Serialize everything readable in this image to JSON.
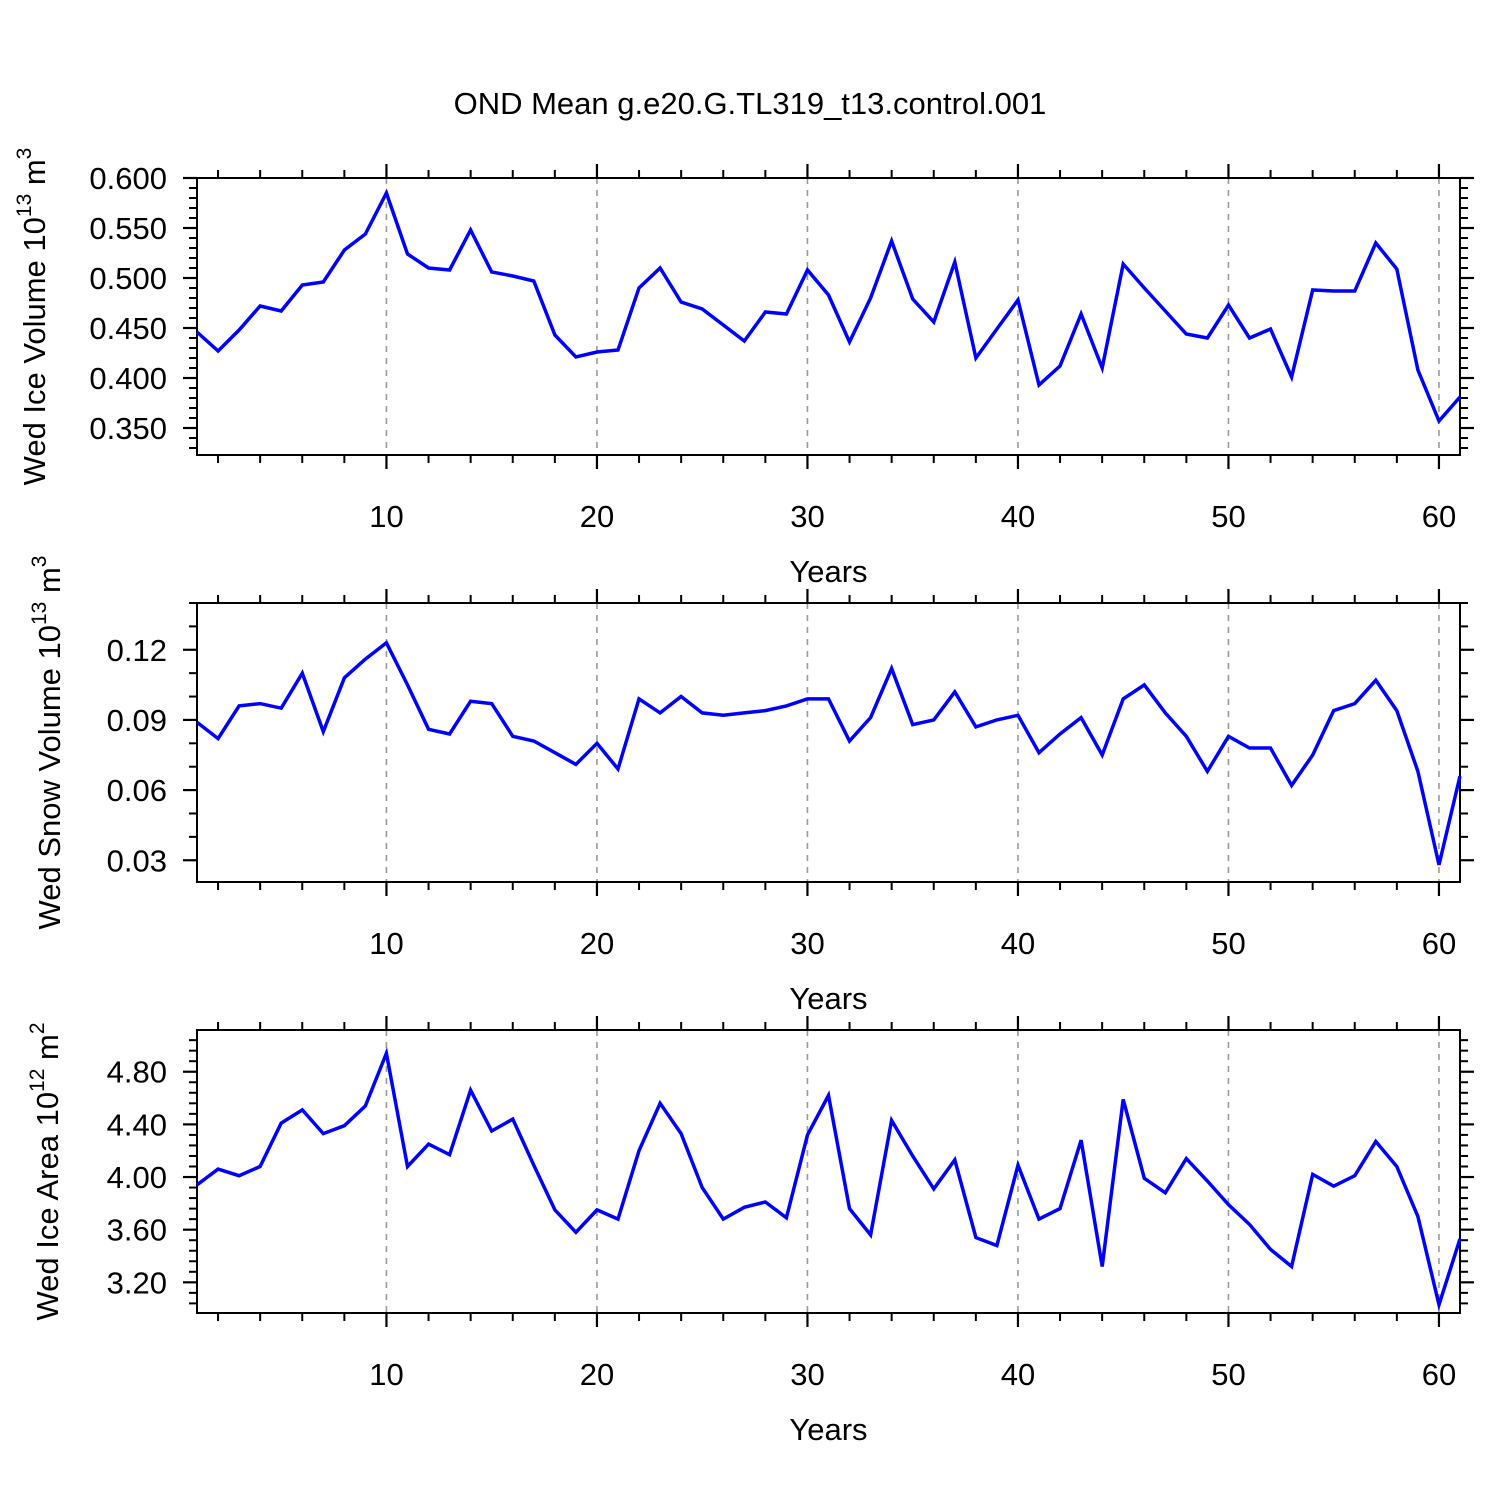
{
  "title": "OND Mean g.e20.G.TL319_t13.control.001",
  "chart_data": {
    "type": "line",
    "x_label": "Years",
    "x": [
      1,
      2,
      3,
      4,
      5,
      6,
      7,
      8,
      9,
      10,
      11,
      12,
      13,
      14,
      15,
      16,
      17,
      18,
      19,
      20,
      21,
      22,
      23,
      24,
      25,
      26,
      27,
      28,
      29,
      30,
      31,
      32,
      33,
      34,
      35,
      36,
      37,
      38,
      39,
      40,
      41,
      42,
      43,
      44,
      45,
      46,
      47,
      48,
      49,
      50,
      51,
      52,
      53,
      54,
      55,
      56,
      57,
      58,
      59,
      60,
      61
    ],
    "xlim": [
      1,
      61
    ],
    "x_ticks_major": [
      10,
      20,
      30,
      40,
      50,
      60
    ],
    "x_minor_step": 2,
    "grid": "vertical dashed gridlines at major x ticks",
    "grid_color": "#9a9a9a",
    "series_color": "#0000ff",
    "axis_color": "#000000",
    "panels": [
      {
        "name": "Wed Ice Volume",
        "ylabel_prefix": "Wed Ice Volume 10",
        "ylabel_exponent": "13",
        "ylabel_unit": "m",
        "ylabel_unit_exponent": "3",
        "xlabel": "Years",
        "ylim": [
          0.323,
          0.6
        ],
        "ytick_start": 0.35,
        "ytick_step": 0.05,
        "ytick_end": 0.6,
        "yminor_step": 0.01,
        "ydecimals": 3,
        "values": [
          0.446,
          0.427,
          0.448,
          0.472,
          0.467,
          0.493,
          0.496,
          0.528,
          0.544,
          0.585,
          0.524,
          0.51,
          0.508,
          0.548,
          0.506,
          0.502,
          0.497,
          0.443,
          0.421,
          0.426,
          0.428,
          0.49,
          0.51,
          0.476,
          0.469,
          0.453,
          0.437,
          0.466,
          0.464,
          0.508,
          0.483,
          0.436,
          0.48,
          0.537,
          0.479,
          0.456,
          0.516,
          0.42,
          0.449,
          0.478,
          0.393,
          0.412,
          0.464,
          0.41,
          0.514,
          0.49,
          0.467,
          0.444,
          0.44,
          0.473,
          0.44,
          0.449,
          0.401,
          0.488,
          0.487,
          0.487,
          0.535,
          0.509,
          0.408,
          0.357,
          0.381
        ]
      },
      {
        "name": "Wed Snow Volume",
        "ylabel_prefix": "Wed Snow Volume 10",
        "ylabel_exponent": "13",
        "ylabel_unit": "m",
        "ylabel_unit_exponent": "3",
        "xlabel": "Years",
        "ylim": [
          0.0207,
          0.14
        ],
        "ytick_start": 0.03,
        "ytick_step": 0.03,
        "ytick_end": 0.12,
        "yminor_step": 0.01,
        "ydecimals": 2,
        "values": [
          0.089,
          0.082,
          0.096,
          0.097,
          0.095,
          0.11,
          0.085,
          0.108,
          0.116,
          0.123,
          0.105,
          0.086,
          0.084,
          0.098,
          0.097,
          0.083,
          0.081,
          0.076,
          0.071,
          0.08,
          0.069,
          0.099,
          0.093,
          0.1,
          0.093,
          0.092,
          0.093,
          0.094,
          0.096,
          0.099,
          0.099,
          0.081,
          0.091,
          0.112,
          0.088,
          0.09,
          0.102,
          0.087,
          0.09,
          0.092,
          0.076,
          0.084,
          0.091,
          0.075,
          0.099,
          0.105,
          0.093,
          0.083,
          0.068,
          0.083,
          0.078,
          0.078,
          0.062,
          0.075,
          0.094,
          0.097,
          0.107,
          0.094,
          0.068,
          0.028,
          0.066
        ]
      },
      {
        "name": "Wed Ice Area",
        "ylabel_prefix": "Wed Ice Area 10",
        "ylabel_exponent": "12",
        "ylabel_unit": "m",
        "ylabel_unit_exponent": "2",
        "xlabel": "Years",
        "ylim": [
          2.967,
          5.117
        ],
        "ytick_start": 3.2,
        "ytick_step": 0.4,
        "ytick_end": 4.8,
        "yminor_step": 0.08,
        "ydecimals": 2,
        "values": [
          3.94,
          4.06,
          4.01,
          4.08,
          4.41,
          4.51,
          4.33,
          4.39,
          4.54,
          4.94,
          4.08,
          4.25,
          4.17,
          4.66,
          4.35,
          4.44,
          4.09,
          3.75,
          3.58,
          3.75,
          3.68,
          4.2,
          4.56,
          4.33,
          3.92,
          3.68,
          3.77,
          3.81,
          3.69,
          4.32,
          4.62,
          3.76,
          3.56,
          4.43,
          4.16,
          3.91,
          4.13,
          3.54,
          3.48,
          4.09,
          3.68,
          3.76,
          4.28,
          3.32,
          4.59,
          3.99,
          3.88,
          4.14,
          3.97,
          3.79,
          3.64,
          3.45,
          3.32,
          4.02,
          3.93,
          4.01,
          4.27,
          4.08,
          3.7,
          3.03,
          3.53
        ]
      }
    ]
  }
}
